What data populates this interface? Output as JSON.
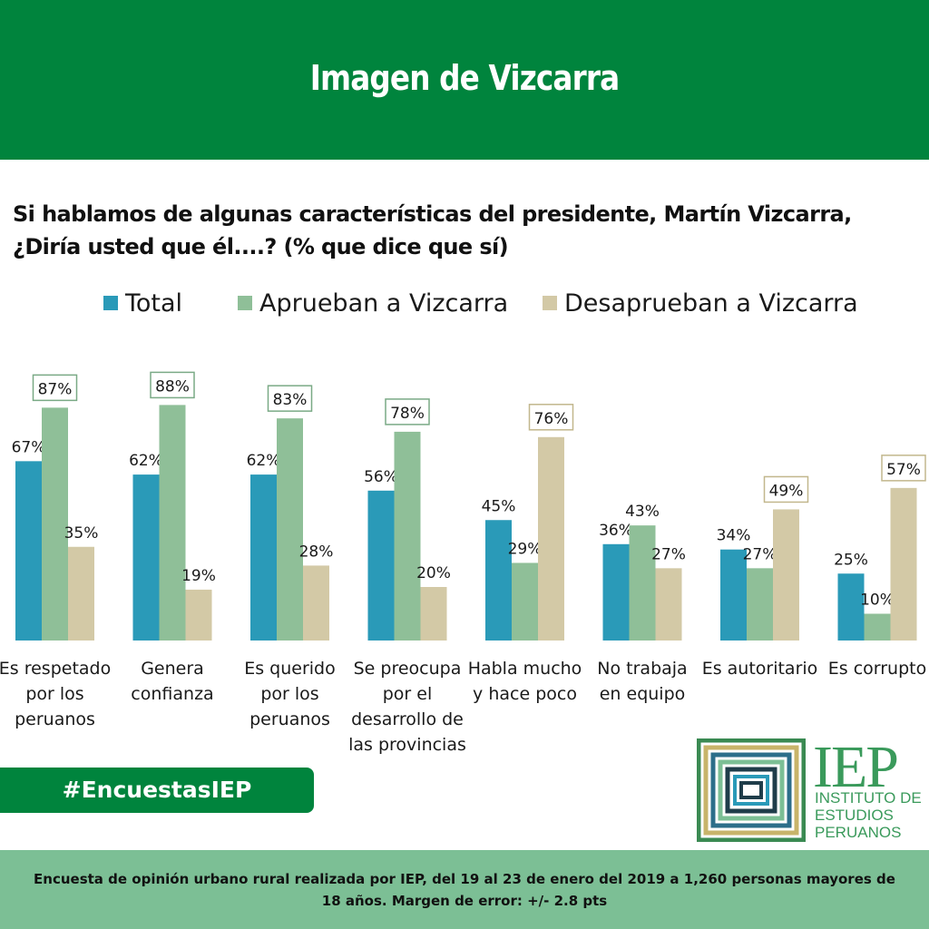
{
  "header": {
    "title": "Imagen de Vizcarra"
  },
  "question": "Si hablamos de algunas características del presidente, Martín Vizcarra, ¿Diría usted que él....? (% que dice que sí)",
  "colors": {
    "total": "#2a9ab8",
    "aprueban": "#8fbf98",
    "desaprueban": "#d3c9a6",
    "green": "#00843d",
    "footer": "#7cbf95"
  },
  "chart_data": {
    "type": "bar",
    "title": "Imagen de Vizcarra",
    "ylabel": "% que dice que sí",
    "ylim": [
      0,
      100
    ],
    "legend_position": "top",
    "categories": [
      [
        "Es respetado",
        "por los",
        "peruanos"
      ],
      [
        "Genera",
        "confianza"
      ],
      [
        "Es querido",
        "por los",
        "peruanos"
      ],
      [
        "Se preocupa",
        "por el",
        "desarrollo de",
        "las provincias"
      ],
      [
        "Habla mucho",
        "y hace poco"
      ],
      [
        "No trabaja",
        "en equipo"
      ],
      [
        "Es autoritario"
      ],
      [
        "Es corrupto"
      ]
    ],
    "series": [
      {
        "name": "Total",
        "color": "#2a9ab8",
        "values": [
          67,
          62,
          62,
          56,
          45,
          36,
          34,
          25
        ]
      },
      {
        "name": "Aprueban a Vizcarra",
        "color": "#8fbf98",
        "values": [
          87,
          88,
          83,
          78,
          29,
          43,
          27,
          10
        ]
      },
      {
        "name": "Desaprueban a Vizcarra",
        "color": "#d3c9a6",
        "values": [
          35,
          19,
          28,
          20,
          76,
          27,
          49,
          57
        ]
      }
    ],
    "highlighted": [
      [
        1,
        0
      ],
      [
        1,
        1
      ],
      [
        1,
        2
      ],
      [
        1,
        3
      ],
      [
        2,
        4
      ],
      [
        2,
        6
      ],
      [
        2,
        7
      ]
    ],
    "value_suffix": "%"
  },
  "hashtag": "#EncuestasIEP",
  "logo": {
    "abbr": "IEP",
    "line1": "INSTITUTO DE",
    "line2": "ESTUDIOS",
    "line3": "PERUANOS"
  },
  "footer": {
    "text": "Encuesta de opinión urbano rural realizada por IEP, del 19 al 23 de enero del 2019 a 1,260 personas mayores de 18 años. Margen de error: +/- 2.8 pts"
  }
}
